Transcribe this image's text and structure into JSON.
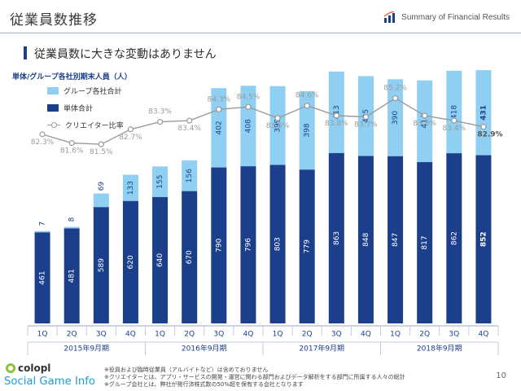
{
  "header": {
    "title": "従業員数推移",
    "brand": "Summary of Financial Results",
    "subtitle": "従業員数に大きな変動はありません",
    "page_number": "10"
  },
  "logo": {
    "text": "Social Game Info"
  },
  "footnotes": [
    "※役員および臨時従業員（アルバイトなど）は含めておりません",
    "※クリエイターとは、アプリ・サービスの開発・運営に関わる部門およびデータ解析をする部門に所属する人々の総計",
    "※グループ会社とは、弊社が発行済株式数の50%超を保有する会社となります"
  ],
  "colors": {
    "standalone": "#1b3f8b",
    "group_extra": "#8fd0f2",
    "ratio_line": "#9a9a9a",
    "accent": "#1b3f8b"
  },
  "chart_data": {
    "type": "bar",
    "stacked": true,
    "title": "単体/グループ各社別期末人員（人）",
    "categories": [
      "1Q",
      "2Q",
      "3Q",
      "4Q",
      "1Q",
      "2Q",
      "3Q",
      "4Q",
      "1Q",
      "2Q",
      "3Q",
      "4Q",
      "1Q",
      "2Q",
      "3Q",
      "4Q"
    ],
    "category_groups": [
      {
        "label": "2015年9月期",
        "span": 4
      },
      {
        "label": "2016年9月期",
        "span": 4
      },
      {
        "label": "2017年9月期",
        "span": 4
      },
      {
        "label": "2018年9月期",
        "span": 4
      }
    ],
    "series": [
      {
        "name": "単体合計",
        "values": [
          461,
          481,
          589,
          620,
          640,
          670,
          790,
          796,
          803,
          779,
          863,
          848,
          847,
          817,
          862,
          852
        ]
      },
      {
        "name": "グループ各社合計",
        "values": [
          7,
          8,
          69,
          133,
          155,
          156,
          402,
          408,
          399,
          398,
          413,
          405,
          390,
          414,
          418,
          431
        ]
      }
    ],
    "line_series": {
      "name": "クリエイター比率",
      "values": [
        82.3,
        81.6,
        81.5,
        82.7,
        83.3,
        83.4,
        84.3,
        84.5,
        83.6,
        84.6,
        83.8,
        83.7,
        85.2,
        83.8,
        83.4,
        82.9
      ],
      "labels": [
        "82.3%",
        "81.6%",
        "81.5%",
        "82.7%",
        "83.3%",
        "83.4%",
        "84.3%",
        "84.5%",
        "83.6%",
        "84.6%",
        "83.8%",
        "83.7%",
        "85.2%",
        "83.8%",
        "83.4%",
        "82.9%"
      ]
    },
    "ylim": [
      0,
      1300
    ],
    "line_ylim": [
      80.0,
      85.5
    ],
    "legend_position": "top-left",
    "grid": false
  }
}
